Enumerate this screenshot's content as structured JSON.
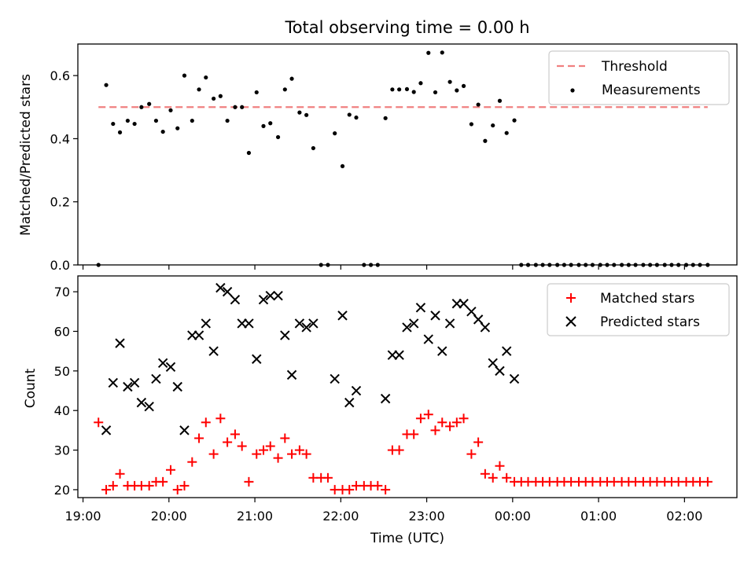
{
  "chart_data": {
    "type": "scatter",
    "title": "Total observing time = 0.00 h",
    "xlabel": "Time (UTC)",
    "x_ticks": [
      "19:00",
      "20:00",
      "21:00",
      "22:00",
      "23:00",
      "00:00",
      "01:00",
      "02:00"
    ],
    "x_range_hours": [
      18.94,
      26.61
    ],
    "x_tick_hours": [
      19,
      20,
      21,
      22,
      23,
      24,
      25,
      26
    ],
    "colors": {
      "threshold": "#f08080",
      "measurements": "#000000",
      "matched": "#ff0000",
      "predicted": "#000000"
    },
    "panels": [
      {
        "ylabel": "Matched/Predicted stars",
        "ylim": [
          0,
          0.7
        ],
        "y_ticks": [
          "0.0",
          "0.2",
          "0.4",
          "0.6"
        ],
        "y_tick_values": [
          0,
          0.2,
          0.4,
          0.6
        ],
        "legend_position": "upper right",
        "threshold": {
          "name": "Threshold",
          "value": 0.5,
          "x_range": [
            19.18,
            26.27
          ]
        },
        "measurements": {
          "name": "Measurements",
          "x": [
            19.18,
            19.27,
            19.35,
            19.43,
            19.52,
            19.6,
            19.68,
            19.77,
            19.85,
            19.93,
            20.02,
            20.1,
            20.18,
            20.27,
            20.35,
            20.43,
            20.52,
            20.6,
            20.68,
            20.77,
            20.85,
            20.93,
            21.02,
            21.1,
            21.18,
            21.27,
            21.35,
            21.43,
            21.52,
            21.6,
            21.68,
            21.77,
            21.85,
            21.93,
            22.02,
            22.1,
            22.18,
            22.27,
            22.35,
            22.43,
            22.52,
            22.6,
            22.68,
            22.77,
            22.85,
            22.93,
            23.02,
            23.1,
            23.18,
            23.27,
            23.35,
            23.43,
            23.52,
            23.6,
            23.68,
            23.77,
            23.85,
            23.93,
            24.02,
            24.1,
            24.18,
            24.27,
            24.35,
            24.43,
            24.52,
            24.6,
            24.68,
            24.77,
            24.85,
            24.93,
            25.02,
            25.1,
            25.18,
            25.27,
            25.35,
            25.43,
            25.52,
            25.6,
            25.68,
            25.77,
            25.85,
            25.93,
            26.02,
            26.1,
            26.18,
            26.27
          ],
          "y": [
            0,
            0.57,
            0.447,
            0.42,
            0.457,
            0.447,
            0.5,
            0.51,
            0.457,
            0.422,
            0.49,
            0.433,
            0.6,
            0.457,
            0.556,
            0.594,
            0.527,
            0.535,
            0.457,
            0.5,
            0.5,
            0.355,
            0.547,
            0.44,
            0.449,
            0.405,
            0.556,
            0.59,
            0.483,
            0.475,
            0.37,
            0,
            0,
            0.417,
            0.313,
            0.476,
            0.467,
            0,
            0,
            0,
            0.465,
            0.556,
            0.556,
            0.557,
            0.548,
            0.576,
            0.672,
            0.547,
            0.673,
            0.58,
            0.553,
            0.567,
            0.446,
            0.508,
            0.393,
            0.442,
            0.52,
            0.418,
            0.458,
            0,
            0,
            0,
            0,
            0,
            0,
            0,
            0,
            0,
            0,
            0,
            0,
            0,
            0,
            0,
            0,
            0,
            0,
            0,
            0,
            0,
            0,
            0,
            0,
            0,
            0,
            0
          ]
        }
      },
      {
        "ylabel": "Count",
        "ylim": [
          18,
          74
        ],
        "y_ticks": [
          "20",
          "30",
          "40",
          "50",
          "60",
          "70"
        ],
        "y_tick_values": [
          20,
          30,
          40,
          50,
          60,
          70
        ],
        "legend_position": "upper right",
        "series": [
          {
            "name": "Matched stars",
            "marker": "+",
            "x": [
              19.18,
              19.27,
              19.35,
              19.43,
              19.52,
              19.6,
              19.68,
              19.77,
              19.85,
              19.93,
              20.02,
              20.1,
              20.18,
              20.27,
              20.35,
              20.43,
              20.52,
              20.6,
              20.68,
              20.77,
              20.85,
              20.93,
              21.02,
              21.1,
              21.18,
              21.27,
              21.35,
              21.43,
              21.52,
              21.6,
              21.68,
              21.77,
              21.85,
              21.93,
              22.02,
              22.1,
              22.18,
              22.27,
              22.35,
              22.43,
              22.52,
              22.6,
              22.68,
              22.77,
              22.85,
              22.93,
              23.02,
              23.1,
              23.18,
              23.27,
              23.35,
              23.43,
              23.52,
              23.6,
              23.68,
              23.77,
              23.85,
              23.93,
              24.02,
              24.1,
              24.18,
              24.27,
              24.35,
              24.43,
              24.52,
              24.6,
              24.68,
              24.77,
              24.85,
              24.93,
              25.02,
              25.1,
              25.18,
              25.27,
              25.35,
              25.43,
              25.52,
              25.6,
              25.68,
              25.77,
              25.85,
              25.93,
              26.02,
              26.1,
              26.18,
              26.27
            ],
            "y": [
              37,
              20,
              21,
              24,
              21,
              21,
              21,
              21,
              22,
              22,
              25,
              20,
              21,
              27,
              33,
              37,
              29,
              38,
              32,
              34,
              31,
              22,
              29,
              30,
              31,
              28,
              33,
              29,
              30,
              29,
              23,
              23,
              23,
              20,
              20,
              20,
              21,
              21,
              21,
              21,
              20,
              30,
              30,
              34,
              34,
              38,
              39,
              35,
              37,
              36,
              37,
              38,
              29,
              32,
              24,
              23,
              26,
              23,
              22,
              22,
              22,
              22,
              22,
              22,
              22,
              22,
              22,
              22,
              22,
              22,
              22,
              22,
              22,
              22,
              22,
              22,
              22,
              22,
              22,
              22,
              22,
              22,
              22,
              22,
              22,
              22
            ]
          },
          {
            "name": "Predicted stars",
            "marker": "x",
            "x": [
              19.27,
              19.35,
              19.43,
              19.52,
              19.6,
              19.68,
              19.77,
              19.85,
              19.93,
              20.02,
              20.1,
              20.18,
              20.27,
              20.35,
              20.43,
              20.52,
              20.6,
              20.68,
              20.77,
              20.85,
              20.93,
              21.02,
              21.1,
              21.18,
              21.27,
              21.35,
              21.43,
              21.52,
              21.6,
              21.68,
              21.93,
              22.02,
              22.1,
              22.18,
              22.52,
              22.6,
              22.68,
              22.77,
              22.85,
              22.93,
              23.02,
              23.1,
              23.18,
              23.27,
              23.35,
              23.43,
              23.52,
              23.6,
              23.68,
              23.77,
              23.85,
              23.93,
              24.02
            ],
            "y": [
              35,
              47,
              57,
              46,
              47,
              42,
              41,
              48,
              52,
              51,
              46,
              35,
              59,
              59,
              62,
              55,
              71,
              70,
              68,
              62,
              62,
              53,
              68,
              69,
              69,
              59,
              49,
              62,
              61,
              62,
              48,
              64,
              42,
              45,
              43,
              54,
              54,
              61,
              62,
              66,
              58,
              64,
              55,
              62,
              67,
              67,
              65,
              63,
              61,
              52,
              50,
              55,
              48
            ]
          }
        ]
      }
    ]
  }
}
